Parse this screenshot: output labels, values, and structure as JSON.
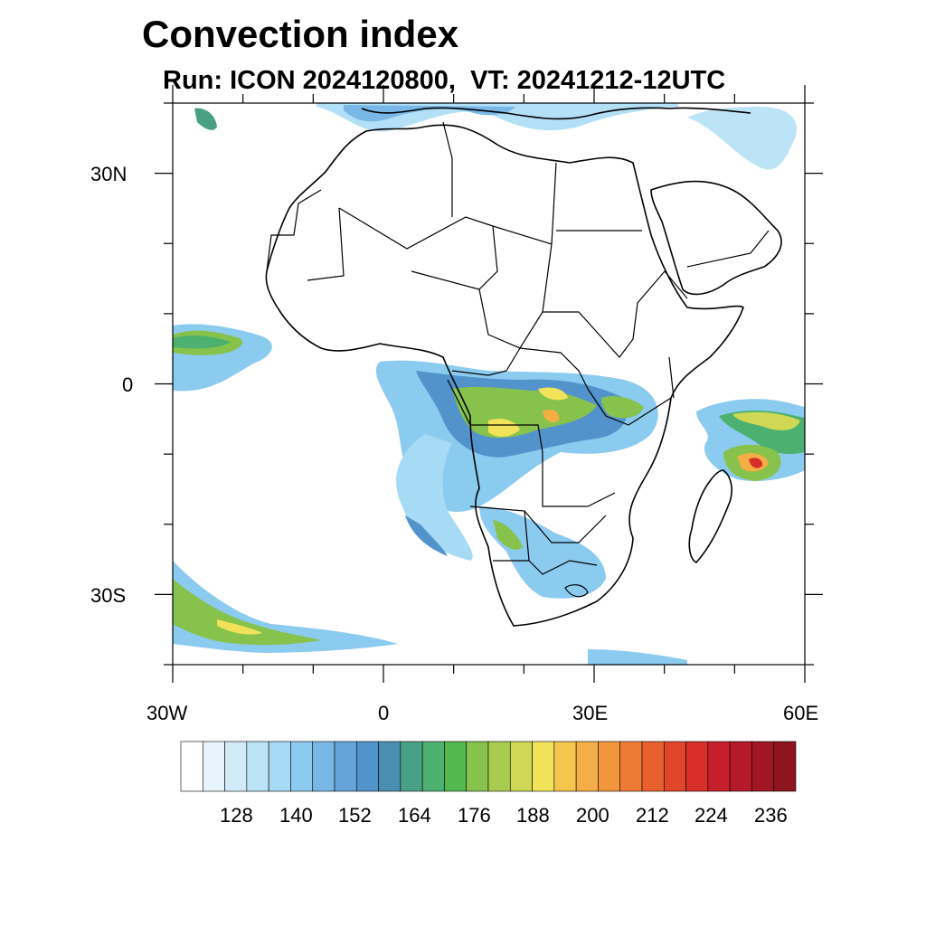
{
  "title": "Convection index",
  "subtitle": "Run: ICON 2024120800,  VT: 20241212-12UTC",
  "map": {
    "lon_range": [
      -30,
      60
    ],
    "lat_range": [
      -40,
      40
    ],
    "lon_ticks": [
      {
        "value": -30,
        "label": "30W"
      },
      {
        "value": 0,
        "label": "0"
      },
      {
        "value": 30,
        "label": "30E"
      },
      {
        "value": 60,
        "label": "60E"
      }
    ],
    "lat_ticks": [
      {
        "value": 30,
        "label": "30N"
      },
      {
        "value": 0,
        "label": "0"
      },
      {
        "value": -30,
        "label": "30S"
      }
    ]
  },
  "colorbar": {
    "colors": [
      "#ffffff",
      "#e8f4fc",
      "#d2ebf8",
      "#bde3f6",
      "#a6daf5",
      "#8ccbf0",
      "#78b7e6",
      "#66a3d9",
      "#5393cc",
      "#4a8fb2",
      "#4aa085",
      "#4bb070",
      "#53b94f",
      "#87c24c",
      "#a8cc4f",
      "#cfd854",
      "#f1e25a",
      "#f5c64e",
      "#f5ad45",
      "#f2963d",
      "#ee7a35",
      "#e8602e",
      "#e1452a",
      "#d62e29",
      "#c61f2b",
      "#b5192a",
      "#a21624",
      "#8d151f"
    ],
    "labels": [
      "128",
      "140",
      "152",
      "164",
      "176",
      "188",
      "200",
      "212",
      "224",
      "236"
    ]
  }
}
